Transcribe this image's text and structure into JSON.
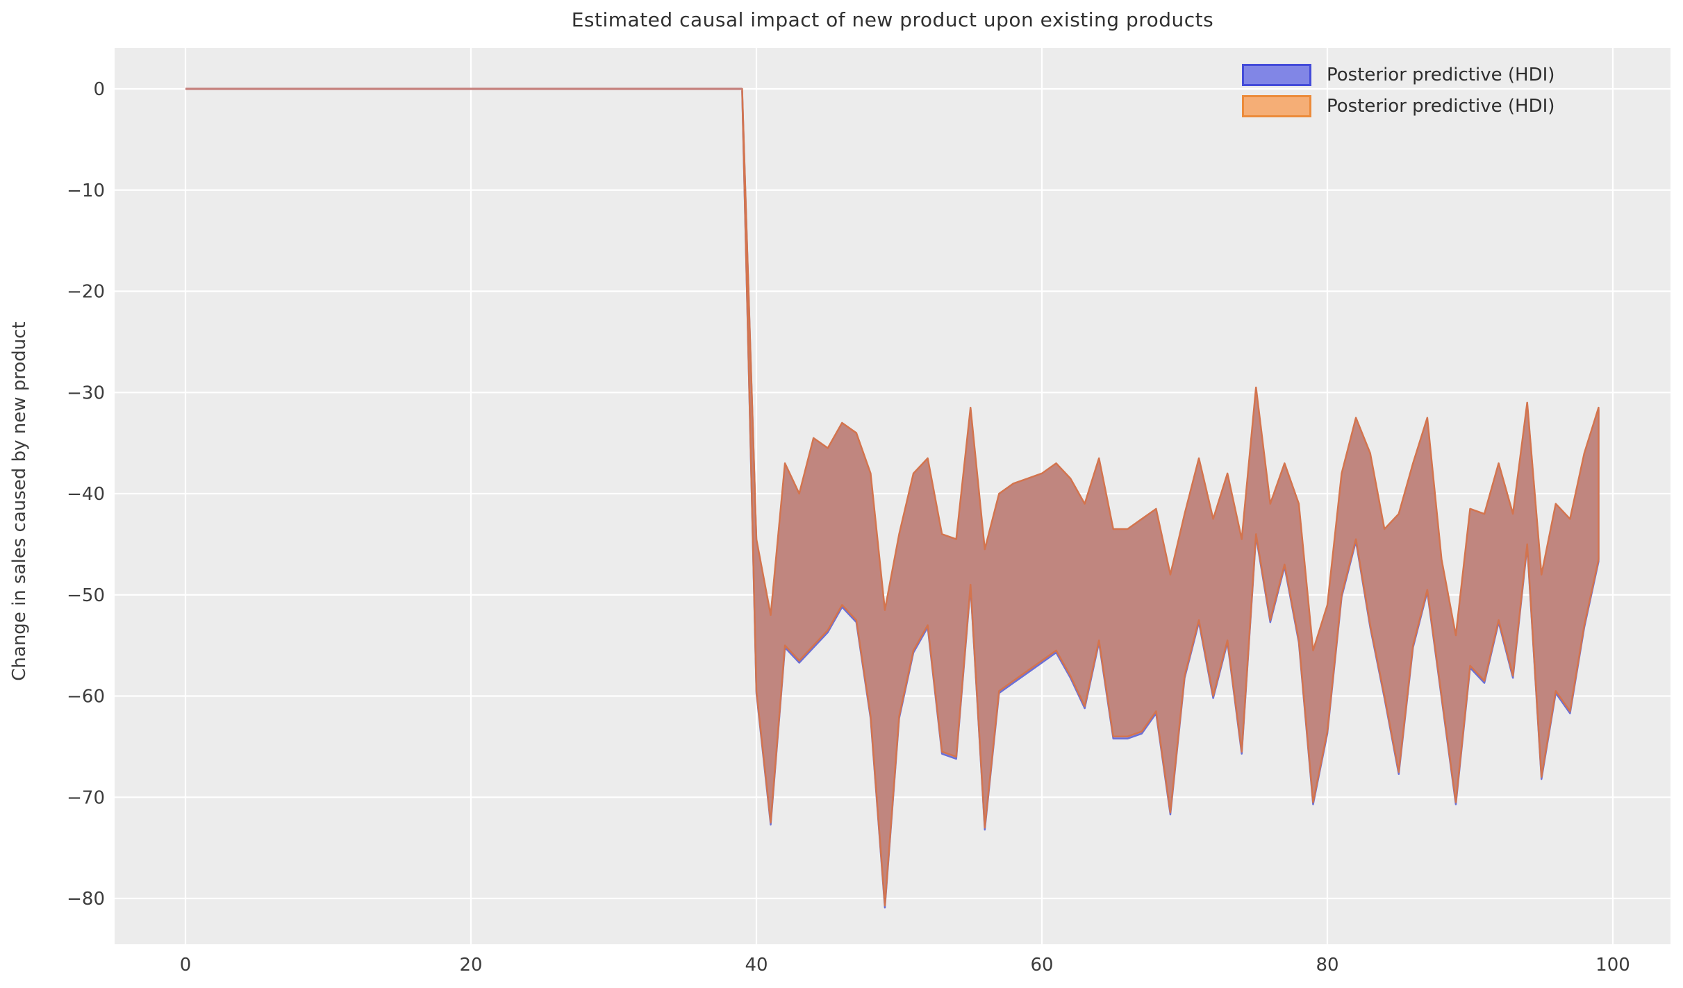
{
  "figure": {
    "title": "Estimated causal impact of new product upon existing products",
    "ylabel": "Change in sales caused by new product"
  },
  "legend": {
    "position": "upper right",
    "items": [
      {
        "label": "Posterior predictive (HDI)",
        "fill": "#8186e6",
        "border": "#444cd9"
      },
      {
        "label": "Posterior predictive (HDI)",
        "fill": "#f5ae76",
        "border": "#ec8b3a"
      }
    ]
  },
  "chart_data": {
    "type": "area",
    "title": "Estimated causal impact of new product upon existing products",
    "xlabel": "",
    "ylabel": "Change in sales caused by new product",
    "xlim": [
      -5,
      104.2
    ],
    "ylim": [
      -84.5,
      4.1
    ],
    "x_ticks": [
      0,
      20,
      40,
      60,
      80,
      100
    ],
    "y_ticks": [
      0,
      -10,
      -20,
      -30,
      -40,
      -50,
      -60,
      -70,
      -80
    ],
    "grid": true,
    "plot_bg": "#ececec",
    "grid_color": "#ffffff",
    "pre_period_line": {
      "comment": "flat zero impact before intervention",
      "x": [
        0,
        39
      ],
      "y": [
        0,
        0
      ],
      "color": "#c5807c"
    },
    "intervention_x": 39,
    "series": [
      {
        "name": "Posterior predictive (HDI)",
        "role": "blue HDI band (drawn beneath, identical envelope)",
        "fill": "#989de2",
        "edge": "#6a6fd6"
      },
      {
        "name": "Posterior predictive (HDI)",
        "role": "orange HDI band (drawn on top; overlap renders dusty rose)",
        "fill": "#c0867f",
        "edge": "#d3744e"
      }
    ],
    "hdi_band": {
      "x": [
        39,
        40,
        41,
        42,
        43,
        44,
        45,
        46,
        47,
        48,
        49,
        50,
        51,
        52,
        53,
        54,
        55,
        56,
        57,
        58,
        59,
        60,
        61,
        62,
        63,
        64,
        65,
        66,
        67,
        68,
        69,
        70,
        71,
        72,
        73,
        74,
        75,
        76,
        77,
        78,
        79,
        80,
        81,
        82,
        83,
        84,
        85,
        86,
        87,
        88,
        89,
        90,
        91,
        92,
        93,
        94,
        95,
        96,
        97,
        98,
        99
      ],
      "upper": [
        0,
        -44.5,
        -52,
        -37,
        -40,
        -34.5,
        -35.5,
        -33,
        -34,
        -38,
        -51.5,
        -44,
        -38,
        -36.5,
        -44,
        -44.5,
        -31.5,
        -45.5,
        -40,
        -39,
        -38.5,
        -38,
        -37,
        -38.5,
        -41,
        -36.5,
        -43.5,
        -43.5,
        -42.5,
        -41.5,
        -48,
        -42,
        -36.5,
        -42.5,
        -38,
        -44.5,
        -29.5,
        -41,
        -37,
        -41,
        -55.5,
        -51,
        -38,
        -32.5,
        -36,
        -43.5,
        -42,
        -37,
        -32.5,
        -46.5,
        -54,
        -41.5,
        -42,
        -37,
        -42,
        -31,
        -48,
        -41,
        -42.5,
        -36,
        -31.5
      ],
      "lower": [
        0,
        -59.5,
        -72.5,
        -55,
        -56.5,
        -55,
        -53.5,
        -51,
        -52.5,
        -62,
        -80.7,
        -62,
        -55.5,
        -53,
        -65.5,
        -66,
        -49,
        -73,
        -59.5,
        -58.5,
        -57.5,
        -56.5,
        -55.5,
        -58,
        -61,
        -54.5,
        -64,
        -64,
        -63.5,
        -61.5,
        -71.5,
        -58,
        -52.5,
        -60,
        -54.5,
        -65.5,
        -44,
        -52.5,
        -47,
        -54.5,
        -70.5,
        -63.5,
        -50,
        -44.5,
        -53,
        -60,
        -67.5,
        -55,
        -49.5,
        -60,
        -70.5,
        -57,
        -58.5,
        -52.5,
        -58,
        -45,
        -68,
        -59.5,
        -61.5,
        -53,
        -46.5
      ]
    }
  }
}
